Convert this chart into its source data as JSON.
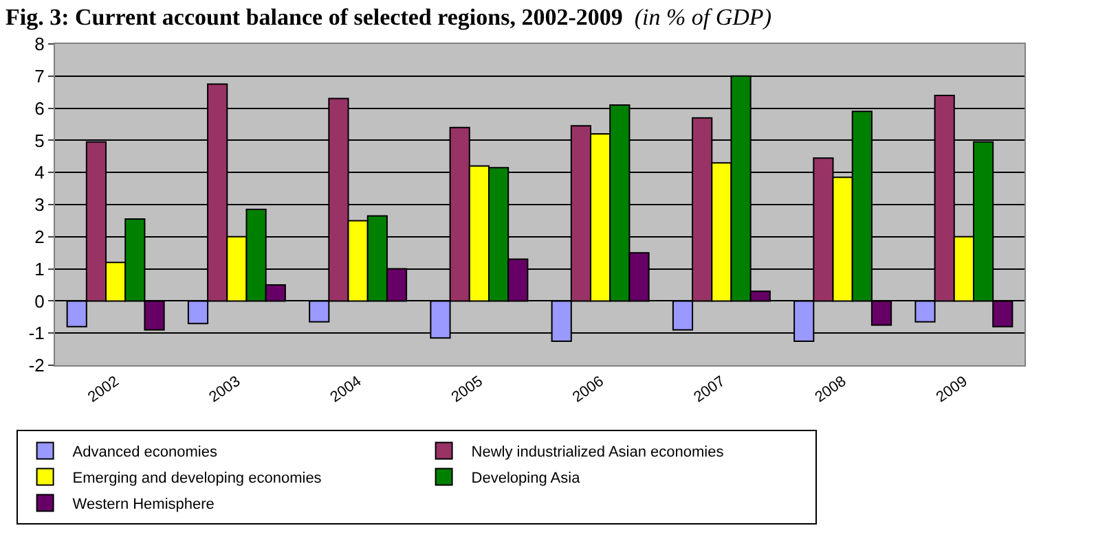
{
  "chart_data": {
    "type": "bar",
    "title": "Fig. 3: Current account balance of selected regions, 2002-2009",
    "subtitle": "(in % of GDP)",
    "categories": [
      "2002",
      "2003",
      "2004",
      "2005",
      "2006",
      "2007",
      "2008",
      "2009"
    ],
    "series": [
      {
        "name": "Advanced economies",
        "color": "#9999ff",
        "values": [
          -0.8,
          -0.7,
          -0.65,
          -1.15,
          -1.25,
          -0.9,
          -1.25,
          -0.65
        ]
      },
      {
        "name": "Newly industrialized Asian economies",
        "color": "#993366",
        "values": [
          4.95,
          6.75,
          6.3,
          5.4,
          5.45,
          5.7,
          4.45,
          6.4
        ]
      },
      {
        "name": "Emerging and developing economies",
        "color": "#ffff00",
        "values": [
          1.2,
          2.0,
          2.5,
          4.2,
          5.2,
          4.3,
          3.85,
          2.0
        ]
      },
      {
        "name": "Developing Asia",
        "color": "#008000",
        "values": [
          2.55,
          2.85,
          2.65,
          4.15,
          6.1,
          7.0,
          5.9,
          4.95
        ]
      },
      {
        "name": "Western Hemisphere",
        "color": "#660066",
        "values": [
          -0.9,
          0.5,
          1.0,
          1.3,
          1.5,
          0.3,
          -0.75,
          -0.8
        ]
      }
    ],
    "ylim": [
      -2,
      8
    ],
    "yticks": [
      -2,
      -1,
      0,
      1,
      2,
      3,
      4,
      5,
      6,
      7,
      8
    ],
    "grid": "y",
    "legend": "bottom"
  }
}
